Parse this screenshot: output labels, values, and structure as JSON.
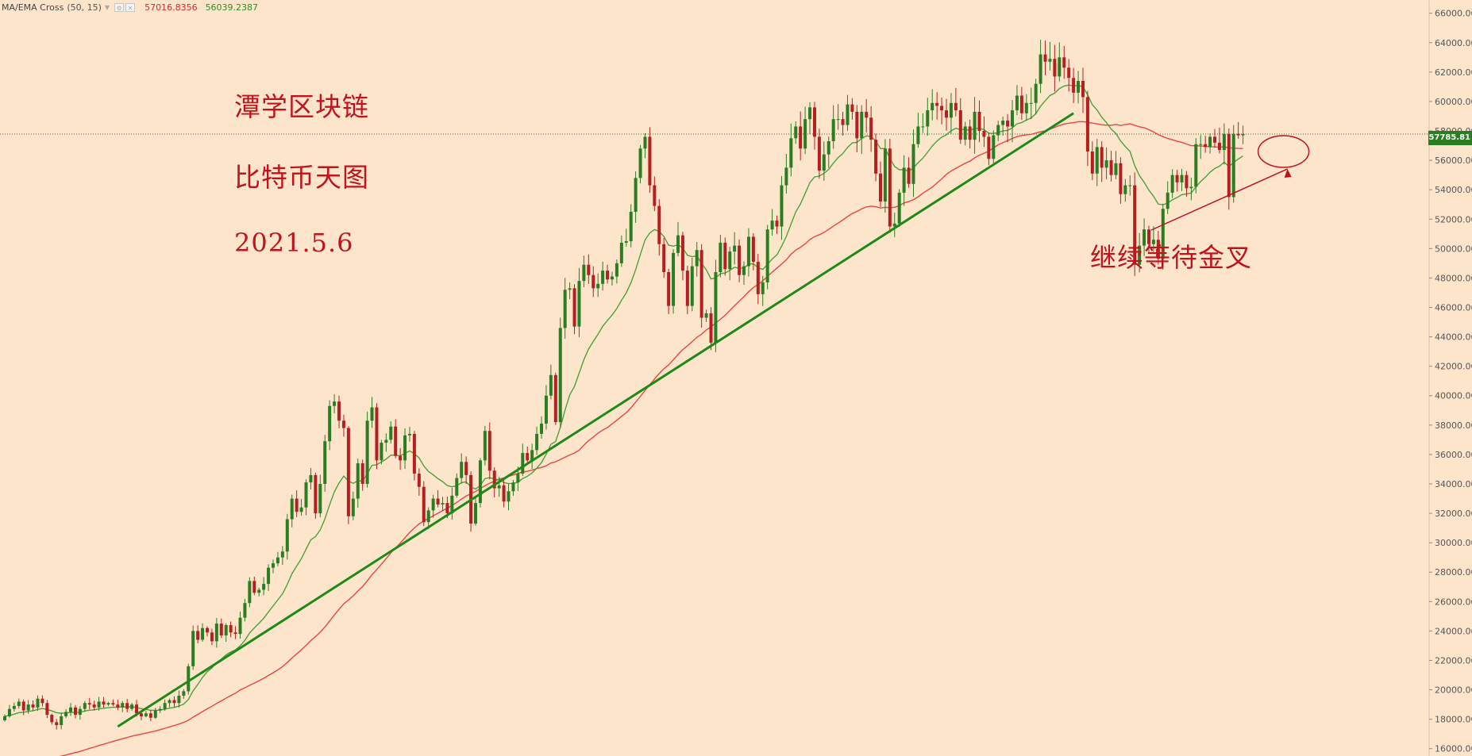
{
  "indicator": {
    "name": "MA/EMA Cross",
    "params": "(50, 15)",
    "ma_value": "57016.8356",
    "ema_value": "56039.2387",
    "ma_color": "#e8473f",
    "ema_color": "#4aa23a"
  },
  "annotations": {
    "title": "潭学区块链",
    "subtitle": "比特币天图",
    "date": "2021.5.6",
    "note": "继续等待金叉"
  },
  "current_price": {
    "label": "57785.81",
    "value": 57785.81,
    "color": "#2a7d21"
  },
  "colors": {
    "background": "#fde5cc",
    "bullish": "#2a7d21",
    "bearish": "#b51f1f",
    "trendline": "#1e8a16",
    "annotation": "#c0131c"
  },
  "chart_data": {
    "type": "candlestick",
    "symbol_timeframe": "BTC daily",
    "ylim": [
      15500,
      66900
    ],
    "y_ticks": [
      16000,
      18000,
      20000,
      22000,
      24000,
      26000,
      28000,
      30000,
      32000,
      34000,
      36000,
      38000,
      40000,
      42000,
      44000,
      46000,
      48000,
      50000,
      52000,
      54000,
      56000,
      58000,
      60000,
      62000,
      64000,
      66000
    ],
    "y_tick_labels": [
      "16000.00",
      "18000.00",
      "20000.00",
      "22000.00",
      "24000.00",
      "26000.00",
      "28000.00",
      "30000.00",
      "32000.00",
      "34000.00",
      "36000.00",
      "38000.00",
      "40000.00",
      "42000.00",
      "44000.00",
      "46000.00",
      "48000.00",
      "50000.00",
      "52000.00",
      "54000.00",
      "56000.00",
      "58000.00",
      "60000.00",
      "62000.00",
      "64000.00",
      "66000.00"
    ],
    "close": [
      18200,
      18700,
      18900,
      19200,
      18600,
      19000,
      18800,
      19400,
      19100,
      18300,
      17800,
      17600,
      18200,
      18500,
      18800,
      18300,
      18700,
      19100,
      19000,
      18800,
      19200,
      19000,
      19100,
      19000,
      18800,
      19100,
      18700,
      19000,
      18400,
      18200,
      18400,
      18100,
      18600,
      18700,
      19100,
      19300,
      19100,
      19600,
      19900,
      21600,
      24000,
      23400,
      24200,
      23900,
      23300,
      24500,
      23700,
      24400,
      23900,
      23800,
      24900,
      25900,
      27400,
      26600,
      26800,
      27200,
      28300,
      28600,
      29000,
      29400,
      31600,
      33000,
      32100,
      32400,
      34100,
      34600,
      32000,
      34000,
      36900,
      39300,
      39600,
      38300,
      37800,
      31800,
      33000,
      35400,
      34000,
      38300,
      39200,
      35600,
      36800,
      37000,
      37900,
      35900,
      35600,
      37300,
      37400,
      34700,
      33800,
      31400,
      32200,
      33000,
      32600,
      32700,
      32000,
      33200,
      34400,
      35500,
      34600,
      31300,
      32700,
      35600,
      37600,
      34900,
      33700,
      33900,
      32800,
      33500,
      34100,
      34700,
      36100,
      35600,
      36300,
      37400,
      38100,
      40000,
      41400,
      38200,
      44600,
      47200,
      47300,
      44700,
      47800,
      48900,
      48200,
      47300,
      47600,
      48500,
      47900,
      48100,
      49000,
      50400,
      50500,
      52500,
      54800,
      56800,
      57600,
      54300,
      52900,
      50300,
      48400,
      46100,
      49700,
      50900,
      48500,
      46100,
      48800,
      49900,
      45300,
      45600,
      43600,
      48400,
      50400,
      48600,
      49800,
      50200,
      48200,
      48800,
      50800,
      49100,
      46900,
      47700,
      51300,
      51900,
      51500,
      54300,
      55500,
      57500,
      58300,
      56800,
      58800,
      59600,
      57600,
      55300,
      56400,
      57300,
      58800,
      58800,
      58400,
      59800,
      59300,
      57500,
      59300,
      58900,
      57400,
      55100,
      53200,
      56800,
      51500,
      51700,
      53800,
      55500,
      54400,
      57100,
      58300,
      58300,
      59400,
      59900,
      59700,
      59400,
      58900,
      59900,
      59400,
      57400,
      58300,
      57400,
      59300,
      58000,
      57600,
      56100,
      57700,
      58400,
      58700,
      58300,
      59400,
      60400,
      59200,
      59900,
      59900,
      61200,
      63200,
      62700,
      62900,
      61700,
      63000,
      62300,
      61600,
      60600,
      61400,
      60300,
      56600,
      55100,
      56900,
      55500,
      56000,
      55000,
      55800,
      53700,
      54300,
      54300,
      48900,
      50200,
      51300,
      50300,
      50600,
      49300,
      52700,
      53800,
      55000,
      54500,
      55000,
      54100,
      54200,
      57100,
      57100,
      56900,
      57600,
      57200,
      56700,
      57800,
      53500,
      57800,
      57700,
      57785.81
    ],
    "open_high_low": "derived",
    "ma_series": {
      "name": "MA/EMA Cross (50)",
      "period": 50,
      "color": "#e8473f",
      "last_value": 57016.8356
    },
    "ema_series": {
      "name": "MA/EMA Cross (15)",
      "period": 15,
      "color": "#4aa23a",
      "last_value": 56039.2387
    },
    "trendline": {
      "from": {
        "bar": 24,
        "price": 17500
      },
      "to": {
        "bar": 227,
        "price": 59200
      }
    },
    "current_price_line": 57785.81,
    "grid": false,
    "legend": "top-left"
  }
}
